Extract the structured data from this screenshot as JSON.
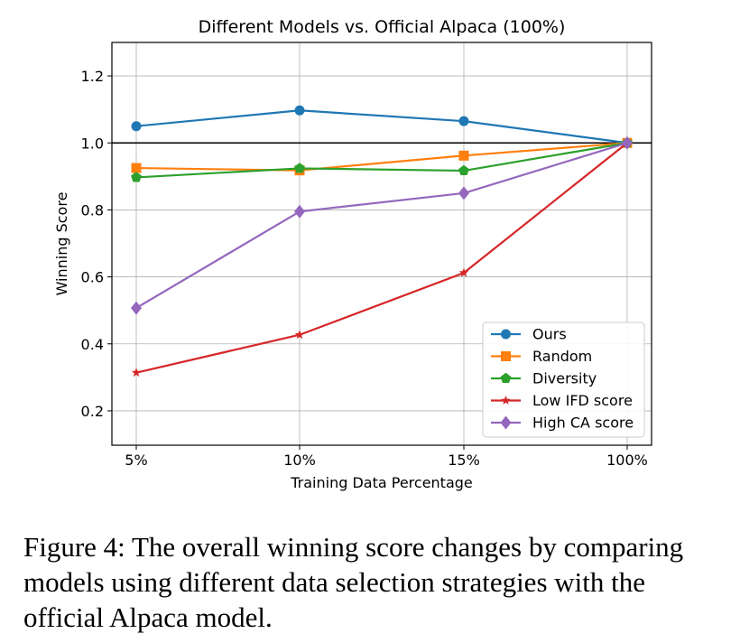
{
  "chart_data": {
    "type": "line",
    "title": "Different Models vs. Official Alpaca (100%)",
    "xlabel": "Training Data Percentage",
    "ylabel": "Winning Score",
    "categories": [
      "5%",
      "10%",
      "15%",
      "100%"
    ],
    "ylim": [
      0.1,
      1.3
    ],
    "yticks": [
      "0.2",
      "0.4",
      "0.6",
      "0.8",
      "1.0",
      "1.2"
    ],
    "ytick_values": [
      0.2,
      0.4,
      0.6,
      0.8,
      1.0,
      1.2
    ],
    "grid": true,
    "reference_line": 1.0,
    "legend_position": "lower-right",
    "series": [
      {
        "name": "Ours",
        "color": "#1f77b4",
        "marker": "circle",
        "values": [
          1.05,
          1.097,
          1.065,
          1.0
        ]
      },
      {
        "name": "Random",
        "color": "#ff7f0e",
        "marker": "square",
        "values": [
          0.925,
          0.918,
          0.962,
          1.0
        ]
      },
      {
        "name": "Diversity",
        "color": "#2ca02c",
        "marker": "pentagon",
        "values": [
          0.897,
          0.924,
          0.917,
          1.0
        ]
      },
      {
        "name": "Low IFD score",
        "color": "#d62728",
        "marker": "star",
        "values": [
          0.314,
          0.427,
          0.612,
          1.0
        ]
      },
      {
        "name": "High CA score",
        "color": "#9467bd",
        "marker": "diamond",
        "values": [
          0.507,
          0.795,
          0.85,
          1.0
        ]
      }
    ]
  },
  "caption": "Figure 4: The overall winning score changes by comparing models using different data selection strategies with the official Alpaca model."
}
